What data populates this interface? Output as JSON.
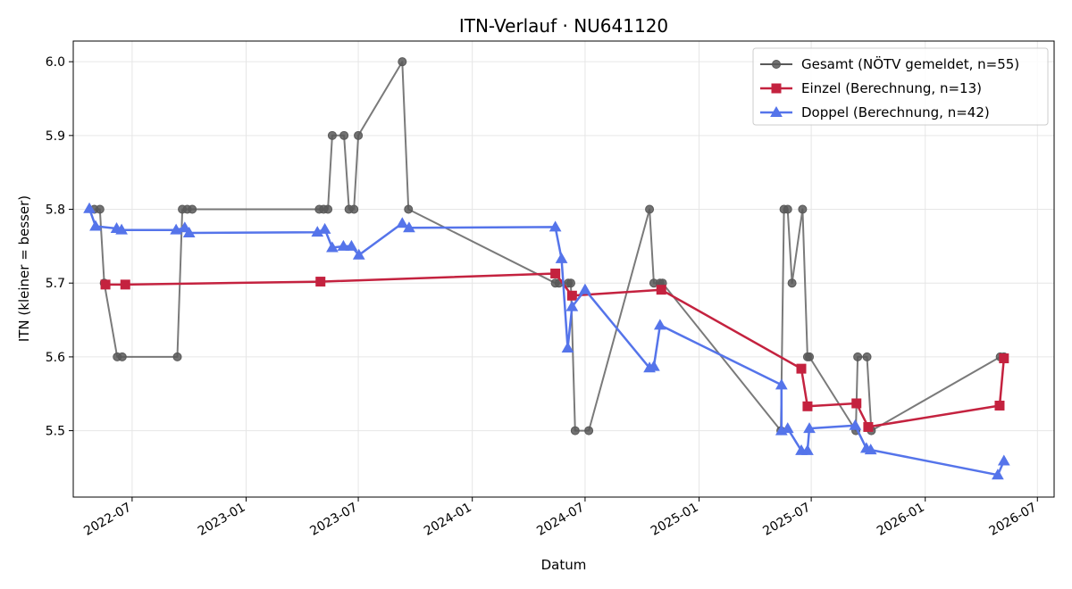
{
  "chart_data": {
    "type": "line",
    "title": "ITN-Verlauf · NU641120",
    "xlabel": "Datum",
    "ylabel": "ITN  (kleiner = besser)",
    "xlim": [
      "2022-03-28",
      "2026-07-28"
    ],
    "ylim": [
      5.41,
      6.028
    ],
    "x_ticks": [
      "2022-07",
      "2023-01",
      "2023-07",
      "2024-01",
      "2024-07",
      "2025-01",
      "2025-07",
      "2026-01",
      "2026-07"
    ],
    "y_ticks": [
      5.5,
      5.6,
      5.7,
      5.8,
      5.9,
      6.0
    ],
    "y_tick_labels": [
      "5.5",
      "5.6",
      "5.7",
      "5.8",
      "5.9",
      "6.0"
    ],
    "grid": true,
    "legend_position": "top-right",
    "series": [
      {
        "name": "Gesamt (NÖTV gemeldet, n=55)",
        "color": "#595959",
        "marker": "circle",
        "points": [
          [
            "2022-05-01",
            5.8
          ],
          [
            "2022-05-10",
            5.8
          ],
          [
            "2022-05-17",
            5.7
          ],
          [
            "2022-06-07",
            5.6
          ],
          [
            "2022-06-15",
            5.6
          ],
          [
            "2022-09-12",
            5.6
          ],
          [
            "2022-09-20",
            5.8
          ],
          [
            "2022-09-28",
            5.8
          ],
          [
            "2022-10-06",
            5.8
          ],
          [
            "2023-04-29",
            5.8
          ],
          [
            "2023-05-06",
            5.8
          ],
          [
            "2023-05-13",
            5.8
          ],
          [
            "2023-05-20",
            5.9
          ],
          [
            "2023-06-08",
            5.9
          ],
          [
            "2023-06-16",
            5.8
          ],
          [
            "2023-06-24",
            5.8
          ],
          [
            "2023-07-01",
            5.9
          ],
          [
            "2023-09-10",
            6.0
          ],
          [
            "2023-09-20",
            5.8
          ],
          [
            "2024-05-14",
            5.7
          ],
          [
            "2024-05-20",
            5.7
          ],
          [
            "2024-06-04",
            5.7
          ],
          [
            "2024-06-08",
            5.7
          ],
          [
            "2024-06-15",
            5.5
          ],
          [
            "2024-07-07",
            5.5
          ],
          [
            "2024-10-13",
            5.8
          ],
          [
            "2024-10-20",
            5.7
          ],
          [
            "2024-10-30",
            5.7
          ],
          [
            "2024-11-03",
            5.7
          ],
          [
            "2025-05-13",
            5.5
          ],
          [
            "2025-05-18",
            5.8
          ],
          [
            "2025-05-24",
            5.8
          ],
          [
            "2025-05-31",
            5.7
          ],
          [
            "2025-06-17",
            5.8
          ],
          [
            "2025-06-25",
            5.6
          ],
          [
            "2025-06-28",
            5.6
          ],
          [
            "2025-09-11",
            5.5
          ],
          [
            "2025-09-14",
            5.6
          ],
          [
            "2025-09-29",
            5.6
          ],
          [
            "2025-10-06",
            5.5
          ],
          [
            "2026-05-02",
            5.6
          ],
          [
            "2026-05-08",
            5.6
          ]
        ]
      },
      {
        "name": "Einzel (Berechnung, n=13)",
        "color": "#c4223f",
        "marker": "square",
        "points": [
          [
            "2022-05-19",
            5.698
          ],
          [
            "2022-06-20",
            5.698
          ],
          [
            "2023-05-01",
            5.702
          ],
          [
            "2024-05-14",
            5.713
          ],
          [
            "2024-06-10",
            5.683
          ],
          [
            "2024-11-01",
            5.691
          ],
          [
            "2025-06-15",
            5.584
          ],
          [
            "2025-06-25",
            5.533
          ],
          [
            "2025-09-12",
            5.537
          ],
          [
            "2025-10-01",
            5.505
          ],
          [
            "2026-05-01",
            5.534
          ],
          [
            "2026-05-08",
            5.598
          ]
        ]
      },
      {
        "name": "Doppel (Berechnung, n=42)",
        "color": "#5574ea",
        "marker": "triangle",
        "points": [
          [
            "2022-04-23",
            5.801
          ],
          [
            "2022-05-03",
            5.777
          ],
          [
            "2022-06-06",
            5.774
          ],
          [
            "2022-06-14",
            5.772
          ],
          [
            "2022-09-10",
            5.772
          ],
          [
            "2022-09-24",
            5.775
          ],
          [
            "2022-10-01",
            5.768
          ],
          [
            "2023-04-26",
            5.769
          ],
          [
            "2023-05-08",
            5.773
          ],
          [
            "2023-05-20",
            5.748
          ],
          [
            "2023-06-07",
            5.75
          ],
          [
            "2023-06-20",
            5.75
          ],
          [
            "2023-07-02",
            5.738
          ],
          [
            "2023-09-10",
            5.781
          ],
          [
            "2023-09-21",
            5.775
          ],
          [
            "2024-05-14",
            5.776
          ],
          [
            "2024-05-24",
            5.733
          ],
          [
            "2024-06-03",
            5.612
          ],
          [
            "2024-06-10",
            5.668
          ],
          [
            "2024-07-01",
            5.691
          ],
          [
            "2024-10-13",
            5.585
          ],
          [
            "2024-10-20",
            5.587
          ],
          [
            "2024-10-30",
            5.643
          ],
          [
            "2025-05-14",
            5.562
          ],
          [
            "2025-05-14",
            5.5
          ],
          [
            "2025-05-24",
            5.503
          ],
          [
            "2025-06-15",
            5.473
          ],
          [
            "2025-06-25",
            5.473
          ],
          [
            "2025-06-28",
            5.503
          ],
          [
            "2025-09-10",
            5.507
          ],
          [
            "2025-09-28",
            5.476
          ],
          [
            "2025-10-05",
            5.474
          ],
          [
            "2026-04-28",
            5.44
          ],
          [
            "2026-05-08",
            5.459
          ]
        ]
      }
    ]
  }
}
